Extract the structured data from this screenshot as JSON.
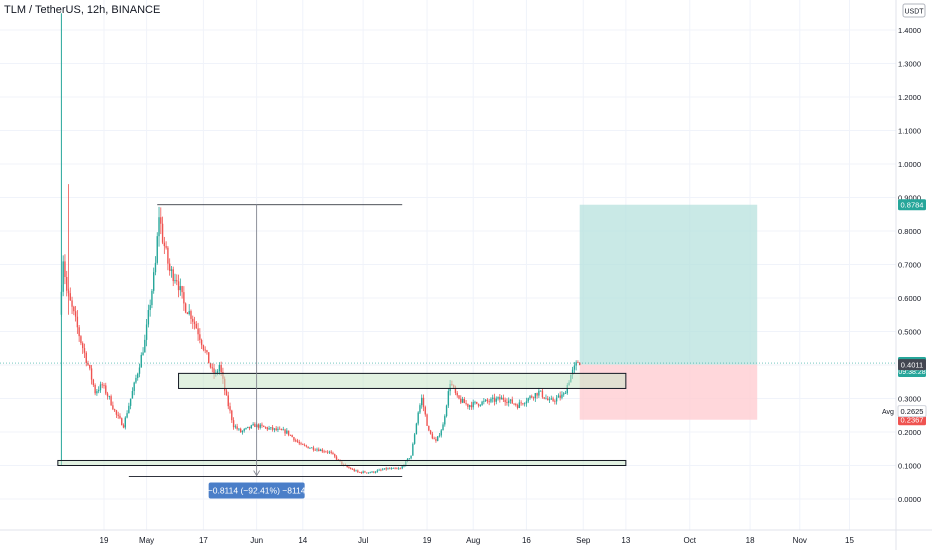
{
  "header": {
    "symbol_title": "TLM / TetherUS, 12h, BINANCE",
    "currency_badge": "USDT"
  },
  "price_labels": {
    "target": "0.8784",
    "last_price": "0.4058",
    "countdown": "09:38:28",
    "entry": "0.4011",
    "avg_label": "Avg",
    "avg_value": "0.2625",
    "stop": "0.2367"
  },
  "measure_label": "−0.8114 (−92.41%) −8114",
  "colors": {
    "up": "#26a69a",
    "down": "#ef5350",
    "target_zone": "#b2dfdb",
    "stop_zone": "#ffcdd2",
    "entry_box": "#c8e6c9",
    "measure_box": "#4a7ec8",
    "axis_text": "#131722"
  },
  "chart_data": {
    "type": "candlestick",
    "title": "TLM / TetherUS, 12h, BINANCE",
    "ylim": [
      -0.08,
      1.45
    ],
    "y_ticks": [
      1.4,
      1.3,
      1.2,
      1.1,
      1.0,
      0.9,
      0.8,
      0.7,
      0.6,
      0.5,
      0.4,
      0.3,
      0.2,
      0.1,
      0.0
    ],
    "x_ticks": [
      "19",
      "May",
      "17",
      "Jun",
      "14",
      "Jul",
      "19",
      "Aug",
      "16",
      "Sep",
      "13",
      "Oct",
      "18",
      "Nov",
      "15"
    ],
    "x_tick_dates": [
      "2021-04-19",
      "2021-05-01",
      "2021-05-17",
      "2021-06-01",
      "2021-06-14",
      "2021-07-01",
      "2021-07-19",
      "2021-08-01",
      "2021-08-16",
      "2021-09-01",
      "2021-09-13",
      "2021-10-01",
      "2021-10-18",
      "2021-11-01",
      "2021-11-15"
    ],
    "price_path": [
      [
        "2021-04-07",
        0.55
      ],
      [
        "2021-04-08",
        0.72
      ],
      [
        "2021-04-09",
        0.62
      ],
      [
        "2021-04-11",
        0.55
      ],
      [
        "2021-04-13",
        0.47
      ],
      [
        "2021-04-15",
        0.4
      ],
      [
        "2021-04-17",
        0.32
      ],
      [
        "2021-04-19",
        0.34
      ],
      [
        "2021-04-21",
        0.3
      ],
      [
        "2021-04-23",
        0.25
      ],
      [
        "2021-04-25",
        0.22
      ],
      [
        "2021-04-27",
        0.3
      ],
      [
        "2021-04-29",
        0.38
      ],
      [
        "2021-05-01",
        0.47
      ],
      [
        "2021-05-02",
        0.55
      ],
      [
        "2021-05-04",
        0.7
      ],
      [
        "2021-05-05",
        0.85
      ],
      [
        "2021-05-06",
        0.78
      ],
      [
        "2021-05-08",
        0.68
      ],
      [
        "2021-05-10",
        0.66
      ],
      [
        "2021-05-12",
        0.58
      ],
      [
        "2021-05-14",
        0.55
      ],
      [
        "2021-05-16",
        0.5
      ],
      [
        "2021-05-18",
        0.44
      ],
      [
        "2021-05-20",
        0.38
      ],
      [
        "2021-05-21",
        0.37
      ],
      [
        "2021-05-22",
        0.4
      ],
      [
        "2021-05-24",
        0.3
      ],
      [
        "2021-05-26",
        0.22
      ],
      [
        "2021-05-28",
        0.2
      ],
      [
        "2021-05-30",
        0.21
      ],
      [
        "2021-06-01",
        0.22
      ],
      [
        "2021-06-05",
        0.21
      ],
      [
        "2021-06-10",
        0.2
      ],
      [
        "2021-06-14",
        0.16
      ],
      [
        "2021-06-18",
        0.15
      ],
      [
        "2021-06-22",
        0.14
      ],
      [
        "2021-06-26",
        0.1
      ],
      [
        "2021-06-30",
        0.08
      ],
      [
        "2021-07-04",
        0.08
      ],
      [
        "2021-07-08",
        0.09
      ],
      [
        "2021-07-12",
        0.09
      ],
      [
        "2021-07-15",
        0.13
      ],
      [
        "2021-07-17",
        0.26
      ],
      [
        "2021-07-18",
        0.3
      ],
      [
        "2021-07-20",
        0.2
      ],
      [
        "2021-07-22",
        0.17
      ],
      [
        "2021-07-24",
        0.22
      ],
      [
        "2021-07-26",
        0.35
      ],
      [
        "2021-07-28",
        0.3
      ],
      [
        "2021-07-31",
        0.28
      ],
      [
        "2021-08-05",
        0.29
      ],
      [
        "2021-08-10",
        0.3
      ],
      [
        "2021-08-14",
        0.28
      ],
      [
        "2021-08-17",
        0.3
      ],
      [
        "2021-08-20",
        0.32
      ],
      [
        "2021-08-23",
        0.29
      ],
      [
        "2021-08-27",
        0.31
      ],
      [
        "2021-08-29",
        0.37
      ],
      [
        "2021-08-31",
        0.41
      ]
    ],
    "position_tool": {
      "type": "long position",
      "entry": 0.4011,
      "target": 0.8784,
      "stop": 0.2367,
      "start_date": "2021-08-31",
      "end_date": "2021-10-20"
    },
    "rectangles": [
      {
        "name": "resistance-zone",
        "date_from": "2021-05-10",
        "date_to": "2021-09-13",
        "price_from": 0.33,
        "price_to": 0.375
      },
      {
        "name": "support-zone",
        "date_from": "2021-04-06",
        "date_to": "2021-09-13",
        "price_from": 0.1,
        "price_to": 0.115
      }
    ],
    "measure": {
      "top_price": 0.8784,
      "bottom_price": 0.067,
      "date": "2021-06-01",
      "label": "−0.8114 (−92.41%) −8114"
    },
    "last_price": 0.4058,
    "avg_price": 0.2625
  }
}
